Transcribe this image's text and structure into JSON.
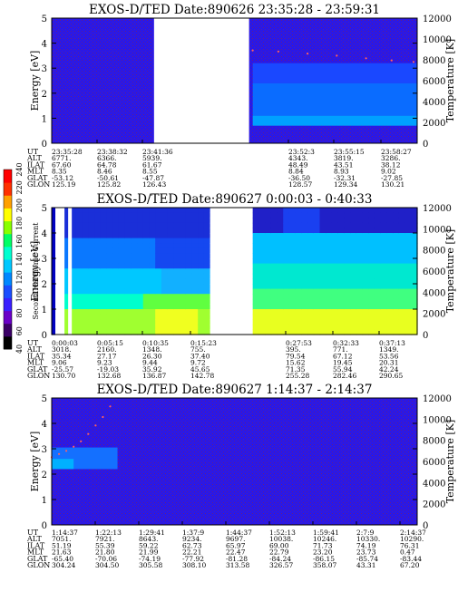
{
  "chart_data": [
    {
      "type": "heatmap",
      "title": "EXOS-D/TED  Date:890626  23:35:28 - 23:59:31",
      "ylabel": "Energy [eV]",
      "y2label": "Temperature [K]",
      "ylim": [
        0,
        5
      ],
      "y2lim": [
        0,
        12000
      ],
      "yticks": [
        "0",
        "1",
        "2",
        "3",
        "4",
        "5"
      ],
      "y2ticks": [
        "0",
        "2000",
        "4000",
        "6000",
        "8000",
        "10000",
        "12000"
      ],
      "gaps": [
        [
          0.28,
          0.54
        ]
      ],
      "temperature_trace": [
        [
          0.55,
          8900
        ],
        [
          0.62,
          8800
        ],
        [
          0.7,
          8600
        ],
        [
          0.78,
          8400
        ],
        [
          0.86,
          8150
        ],
        [
          0.93,
          7950
        ],
        [
          0.99,
          7800
        ]
      ],
      "cell_data_is_approximate": true,
      "table": {
        "row_labels": [
          "UT",
          "ALT",
          "ILAT",
          "MLT",
          "GLAT",
          "GLON"
        ],
        "columns": [
          [
            "23:35:28",
            "6771.",
            "67.60",
            "8.35",
            "-53.12",
            "125.19"
          ],
          [
            "23:38:32",
            "6366.",
            "64.78",
            "8.46",
            "-50.61",
            "125.82"
          ],
          [
            "23:41:36",
            "5939.",
            "61.67",
            "8.55",
            "-47.87",
            "126.43"
          ],
          [
            "23:52:3",
            "4343.",
            "48.49",
            "8.84",
            "-36.50",
            "128.57"
          ],
          [
            "23:55:15",
            "3819.",
            "43.51",
            "8.93",
            "-32.31",
            "129.34"
          ],
          [
            "23:58:27",
            "3286.",
            "38.12",
            "9.02",
            "-27.85",
            "130.21"
          ]
        ]
      }
    },
    {
      "type": "heatmap",
      "title": "EXOS-D/TED  Date:890627  0:00:03 - 0:40:33",
      "ylabel": "Energy [eV]",
      "y2label": "Temperature [K]",
      "ylim": [
        0,
        5
      ],
      "y2lim": [
        0,
        12000
      ],
      "yticks": [
        "0",
        "1",
        "2",
        "3",
        "4",
        "5"
      ],
      "y2ticks": [
        "0",
        "2000",
        "4000",
        "6000",
        "8000",
        "10000",
        "12000"
      ],
      "gaps": [
        [
          0.01,
          0.035
        ],
        [
          0.045,
          0.055
        ],
        [
          0.435,
          0.535
        ]
      ],
      "temperature_trace": [],
      "cell_data_is_approximate": true,
      "colorbar": {
        "label": "Second Harmonic Current",
        "ticks": [
          "40",
          "60",
          "80",
          "100",
          "120",
          "140",
          "160",
          "180",
          "200",
          "220",
          "240"
        ],
        "colors": [
          "#000000",
          "#3a0066",
          "#6a00c8",
          "#3a1fff",
          "#1a4dff",
          "#0088ff",
          "#00c8ff",
          "#00ffd0",
          "#00ff66",
          "#88ff00",
          "#ffff00",
          "#ffa000",
          "#ff3000",
          "#ff0000"
        ]
      },
      "table": {
        "row_labels": [
          "UT",
          "ALT",
          "ILAT",
          "MLT",
          "GLAT",
          "GLON"
        ],
        "columns": [
          [
            "0:00:03",
            "3018.",
            "35.34",
            "9.06",
            "-25.57",
            "130.70"
          ],
          [
            "0:05:15",
            "2160.",
            "27.17",
            "9.23",
            "-19.03",
            "132.68"
          ],
          [
            "0:10:35",
            "1348.",
            "26.30",
            "9.44",
            "35.92",
            "136.87"
          ],
          [
            "0:15:23",
            "755.",
            "37.40",
            "9.72",
            "45.65",
            "142.78"
          ],
          [
            "0:27:53",
            "395.",
            "79.54",
            "15.62",
            "71.35",
            "255.28"
          ],
          [
            "0:32:33",
            "771.",
            "67.12",
            "19.45",
            "55.94",
            "282.46"
          ],
          [
            "0:37:13",
            "1349.",
            "53.56",
            "20.31",
            "42.24",
            "290.65"
          ]
        ]
      }
    },
    {
      "type": "heatmap",
      "title": "EXOS-D/TED  Date:890627  1:14:37 - 2:14:37",
      "ylabel": "Energy [eV]",
      "y2label": "Temperature [K]",
      "ylim": [
        0,
        5
      ],
      "y2lim": [
        0,
        12000
      ],
      "yticks": [
        "0",
        "1",
        "2",
        "3",
        "4",
        "5"
      ],
      "y2ticks": [
        "0",
        "2000",
        "4000",
        "6000",
        "8000",
        "10000",
        "12000"
      ],
      "gaps": [],
      "temperature_trace": [
        [
          0.0,
          6400
        ],
        [
          0.02,
          6700
        ],
        [
          0.04,
          7000
        ],
        [
          0.06,
          7400
        ],
        [
          0.08,
          7900
        ],
        [
          0.1,
          8600
        ],
        [
          0.12,
          9400
        ],
        [
          0.14,
          10200
        ],
        [
          0.16,
          11200
        ]
      ],
      "cell_data_is_approximate": true,
      "table": {
        "row_labels": [
          "UT",
          "ALT",
          "ILAT",
          "MLT",
          "GLAT",
          "GLON"
        ],
        "columns": [
          [
            "1:14:37",
            "7051.",
            "51.19",
            "21.63",
            "-65.40",
            "304.24"
          ],
          [
            "1:22:13",
            "7921.",
            "55.39",
            "21.80",
            "-70.06",
            "304.50"
          ],
          [
            "1:29:41",
            "8643.",
            "59.22",
            "21.99",
            "-74.19",
            "305.58"
          ],
          [
            "1:37:9",
            "9234.",
            "62.73",
            "22.21",
            "-77.92",
            "308.10"
          ],
          [
            "1:44:37",
            "9697.",
            "65.97",
            "22.47",
            "-81.28",
            "313.58"
          ],
          [
            "1:52:13",
            "10038.",
            "69.00",
            "22.79",
            "-84.24",
            "326.57"
          ],
          [
            "1:59:41",
            "10246.",
            "71.73",
            "23.20",
            "-86.15",
            "358.07"
          ],
          [
            "2:7:9",
            "10330.",
            "74.19",
            "23.73",
            "-85.74",
            "43.31"
          ],
          [
            "2:14:37",
            "10290.",
            "76.31",
            "0.47",
            "-83.44",
            "67.20"
          ]
        ]
      }
    }
  ]
}
